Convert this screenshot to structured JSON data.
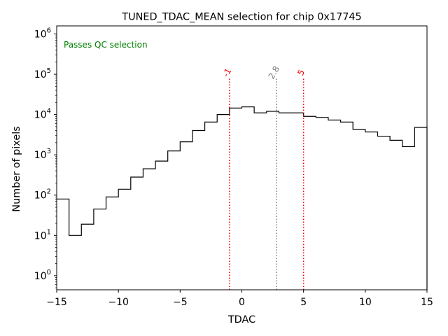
{
  "chart_data": {
    "type": "histogram",
    "title": "TUNED_TDAC_MEAN selection for chip 0x17745",
    "xlabel": "TDAC",
    "ylabel": "Number of pixels",
    "xlim": [
      -15,
      15
    ],
    "ylim_log10": [
      -0.35,
      6.2
    ],
    "yscale": "log",
    "bin_edges": [
      -15,
      -14,
      -13,
      -12,
      -11,
      -10,
      -9,
      -8,
      -7,
      -6,
      -5,
      -4,
      -3,
      -2,
      -1,
      0,
      1,
      2,
      3,
      4,
      5,
      6,
      7,
      8,
      9,
      10,
      11,
      12,
      13,
      14,
      15
    ],
    "counts": [
      80,
      10,
      19,
      45,
      90,
      140,
      280,
      450,
      700,
      1250,
      2100,
      4000,
      6500,
      10000,
      14500,
      15500,
      11000,
      12000,
      11000,
      11000,
      9000,
      8500,
      7300,
      6500,
      4300,
      3700,
      2900,
      2300,
      1600,
      4800
    ],
    "x_ticks": [
      -15,
      -10,
      -5,
      0,
      5,
      10,
      15
    ],
    "x_tick_labels": [
      "−15",
      "−10",
      "−5",
      "0",
      "5",
      "10",
      "15"
    ],
    "y_ticks_exp": [
      0,
      1,
      2,
      3,
      4,
      5,
      6
    ],
    "y_tick_base": "10",
    "minor_y_ticks": true,
    "annotation": {
      "text": "Passes QC selection",
      "color": "#008000"
    },
    "vlines": [
      {
        "x": -1,
        "label": "-1",
        "color": "#ff0000"
      },
      {
        "x": 2.8,
        "label": "2.8",
        "color": "#808080"
      },
      {
        "x": 5,
        "label": "5",
        "color": "#ff0000"
      }
    ],
    "vline_top_value": 80000
  }
}
